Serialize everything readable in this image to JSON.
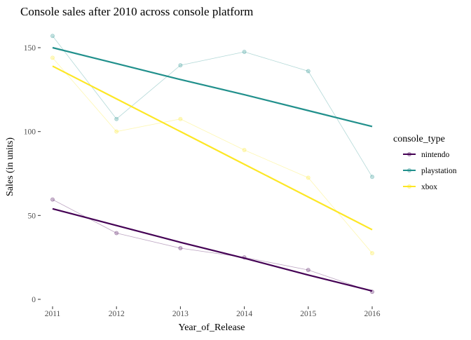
{
  "chart_data": {
    "type": "line",
    "title": "Console sales after 2010 across console platform",
    "xlabel": "Year_of_Release",
    "ylabel": "Sales (in units)",
    "x": [
      2011,
      2012,
      2013,
      2014,
      2015,
      2016
    ],
    "x_ticks": [
      "2011",
      "2012",
      "2013",
      "2014",
      "2015",
      "2016"
    ],
    "ylim": [
      -2,
      162
    ],
    "y_ticks": [
      0,
      50,
      100,
      150
    ],
    "y_tick_labels": [
      "0",
      "50",
      "100",
      "150"
    ],
    "grid": false,
    "legend": {
      "title": "console_type",
      "position": "right"
    },
    "series": [
      {
        "name": "nintendo",
        "color": "#440154",
        "values": [
          59.5,
          39.5,
          30.5,
          25.0,
          17.5,
          4.5
        ],
        "trend": [
          54.0,
          44.0,
          34.0,
          24.5,
          14.5,
          5.0
        ]
      },
      {
        "name": "playstation",
        "color": "#21908C",
        "values": [
          157.0,
          107.5,
          139.5,
          147.5,
          136.0,
          73.0
        ],
        "trend": [
          150.0,
          140.5,
          131.0,
          122.0,
          112.5,
          103.0
        ]
      },
      {
        "name": "xbox",
        "color": "#FDE725",
        "values": [
          144.0,
          100.0,
          107.5,
          89.0,
          72.5,
          27.5
        ],
        "trend": [
          139.0,
          119.5,
          100.0,
          80.5,
          61.0,
          41.5
        ]
      }
    ]
  }
}
